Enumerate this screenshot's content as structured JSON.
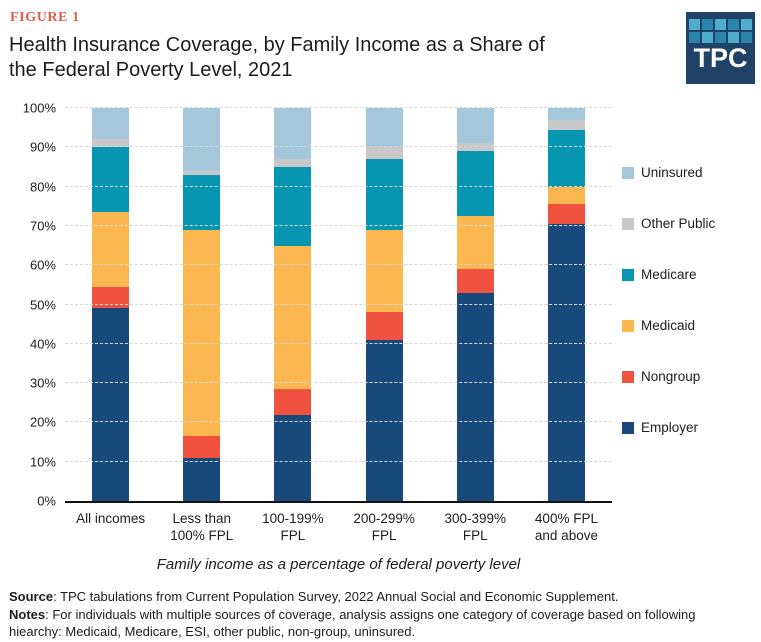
{
  "figure_label": "FIGURE 1",
  "title_lines": {
    "0": "Health Insurance Coverage, by Family Income as a Share of",
    "1": "the Federal Poverty Level, 2021"
  },
  "logo": {
    "text": "TPC",
    "bg": "#1F4266",
    "tile_colors": [
      "#4FAECB",
      "#2B84AC",
      "#4FAECB",
      "#2B84AC",
      "#4FAECB",
      "#2B84AC",
      "#4FAECB",
      "#2B84AC",
      "#4FAECB",
      "#2B84AC"
    ]
  },
  "chart_data": {
    "type": "bar",
    "stacked": true,
    "unit": "percent of population",
    "title": "Health Insurance Coverage, by Family Income as a Share of the Federal Poverty Level, 2021",
    "xlabel": "Family income as a percentage of federal poverty level",
    "ylabel": "",
    "ylim": [
      0,
      100
    ],
    "grid": "horizontal dashed, 10% intervals",
    "legend_position": "right",
    "y_ticks": [
      "0%",
      "10%",
      "20%",
      "30%",
      "40%",
      "50%",
      "60%",
      "70%",
      "80%",
      "90%",
      "100%"
    ],
    "categories": [
      "All incomes",
      "Less than 100% FPL",
      "100-199% FPL",
      "200-299% FPL",
      "300-399% FPL",
      "400% FPL and above"
    ],
    "category_label_lines": [
      [
        "All incomes"
      ],
      [
        "Less than",
        "100% FPL"
      ],
      [
        "100-199%",
        "FPL"
      ],
      [
        "200-299%",
        "FPL"
      ],
      [
        "300-399%",
        "FPL"
      ],
      [
        "400% FPL",
        "and above"
      ]
    ],
    "series": [
      {
        "name": "Employer",
        "color": "#17497B",
        "values": [
          49,
          11,
          22,
          41,
          53,
          70.5
        ]
      },
      {
        "name": "Nongroup",
        "color": "#EF5340",
        "values": [
          5.5,
          5.5,
          6.5,
          7,
          6,
          5
        ]
      },
      {
        "name": "Medicaid",
        "color": "#FBB851",
        "values": [
          19,
          52.5,
          36.5,
          21,
          13.5,
          4.5
        ]
      },
      {
        "name": "Medicare",
        "color": "#0796B1",
        "values": [
          16.5,
          14,
          20,
          18,
          16.5,
          14.5
        ]
      },
      {
        "name": "Other Public",
        "color": "#C7C8CA",
        "values": [
          2,
          1,
          2,
          3,
          2,
          2.5
        ]
      },
      {
        "name": "Uninsured",
        "color": "#A4C8D9",
        "values": [
          8,
          16,
          13,
          10,
          9,
          3
        ]
      }
    ],
    "legend": [
      "Uninsured",
      "Other Public",
      "Medicare",
      "Medicaid",
      "Nongroup",
      "Employer"
    ]
  },
  "footer": {
    "source_label": "Source",
    "source_text": ": TPC tabulations from Current Population Survey, 2022 Annual Social and Economic Supplement.",
    "notes_label": "Notes",
    "notes_text": ": For individuals with multiple sources of coverage, analysis assigns one category of coverage based on following hiearchy: Medicaid, Medicare, ESI, other public, non-group, uninsured."
  }
}
